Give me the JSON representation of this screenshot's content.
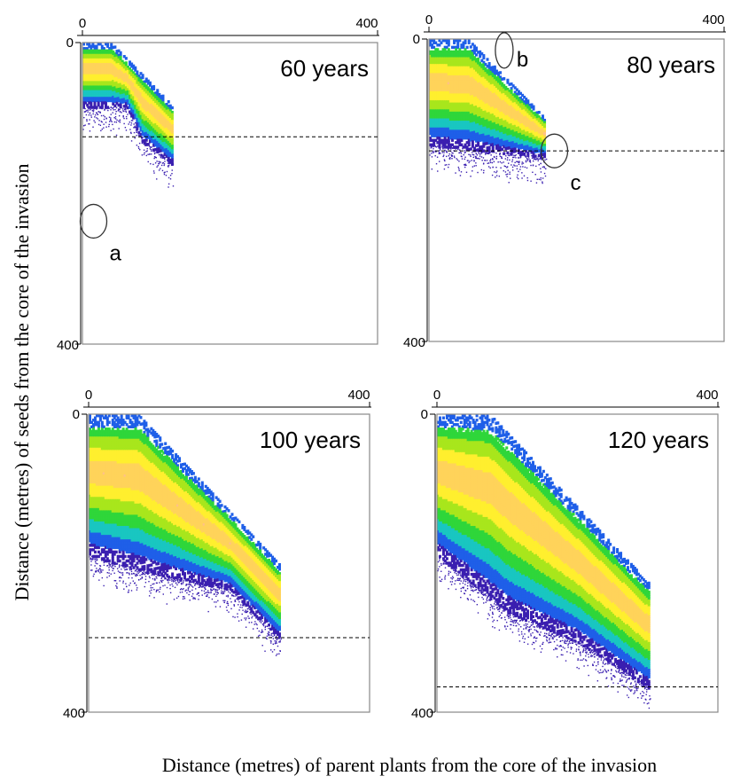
{
  "chart_data": {
    "type": "heatmap",
    "xlabel": "Distance (metres) of parent plants from the core of the invasion",
    "ylabel": "Distance (metres) of seeds from the core of the invasion",
    "colormap": [
      "#3a1fb0",
      "#1f5fe8",
      "#19c6c1",
      "#2fd63a",
      "#a8e61c",
      "#ffef2e",
      "#ffd35a",
      "#ffc08a"
    ],
    "panels": [
      {
        "title": "60 years",
        "xlim": [
          0,
          400
        ],
        "ylim": [
          0,
          400
        ],
        "x_ticks": [
          "0",
          "400"
        ],
        "y_ticks": [
          "0",
          "400"
        ],
        "threshold_y": 125,
        "front": [
          [
            0,
            85
          ],
          [
            60,
            85
          ],
          [
            80,
            130
          ],
          [
            120,
            160
          ]
        ],
        "band_width": 110,
        "annotations": [
          {
            "label": "a",
            "x": 15,
            "y": 237
          }
        ]
      },
      {
        "title": "80 years",
        "xlim": [
          0,
          400
        ],
        "ylim": [
          0,
          400
        ],
        "x_ticks": [
          "0",
          "400"
        ],
        "y_ticks": [
          "0",
          "400"
        ],
        "threshold_y": 148,
        "front": [
          [
            0,
            140
          ],
          [
            100,
            150
          ],
          [
            155,
            155
          ]
        ],
        "band_width": 150,
        "annotations": [
          {
            "label": "b",
            "x": 102,
            "y": 15
          },
          {
            "label": "c",
            "x": 170,
            "y": 148
          }
        ]
      },
      {
        "title": "100 years",
        "xlim": [
          0,
          400
        ],
        "ylim": [
          0,
          400
        ],
        "x_ticks": [
          "0",
          "400"
        ],
        "y_ticks": [
          "0",
          "400"
        ],
        "threshold_y": 300,
        "front": [
          [
            0,
            190
          ],
          [
            100,
            215
          ],
          [
            200,
            235
          ],
          [
            270,
            300
          ]
        ],
        "band_width": 200,
        "annotations": []
      },
      {
        "title": "120 years",
        "xlim": [
          0,
          400
        ],
        "ylim": [
          0,
          400
        ],
        "x_ticks": [
          "0",
          "400"
        ],
        "y_ticks": [
          "0",
          "400"
        ],
        "threshold_y": 366,
        "front": [
          [
            0,
            190
          ],
          [
            100,
            265
          ],
          [
            200,
            305
          ],
          [
            300,
            366
          ]
        ],
        "band_width": 215,
        "annotations": []
      }
    ]
  }
}
